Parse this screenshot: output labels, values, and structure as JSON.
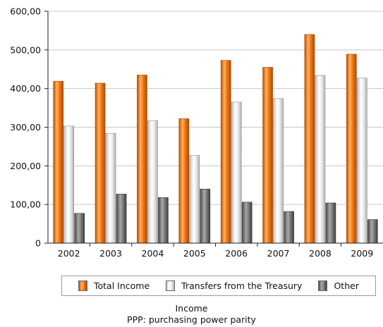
{
  "chart_data": {
    "type": "bar",
    "categories": [
      "2002",
      "2003",
      "2004",
      "2005",
      "2006",
      "2007",
      "2008",
      "2009"
    ],
    "series": [
      {
        "name": "Total Income",
        "values": [
          419,
          414,
          435,
          322,
          473,
          455,
          540,
          489
        ],
        "color": "#f07a1a"
      },
      {
        "name": "Transfers from the Treasury",
        "values": [
          303,
          284,
          317,
          227,
          365,
          374,
          434,
          427
        ],
        "color": "#e6e6e6"
      },
      {
        "name": "Other",
        "values": [
          77,
          127,
          118,
          140,
          106,
          82,
          104,
          61
        ],
        "color": "#707070"
      }
    ],
    "ylim": [
      0,
      600
    ],
    "yticks": [
      "0",
      "100,00",
      "200,00",
      "300,00",
      "400,00",
      "500,00",
      "600,00"
    ],
    "grid": true,
    "legend_position": "bottom",
    "xlabel": "Income",
    "note": "PPP: purchasing power parity"
  }
}
